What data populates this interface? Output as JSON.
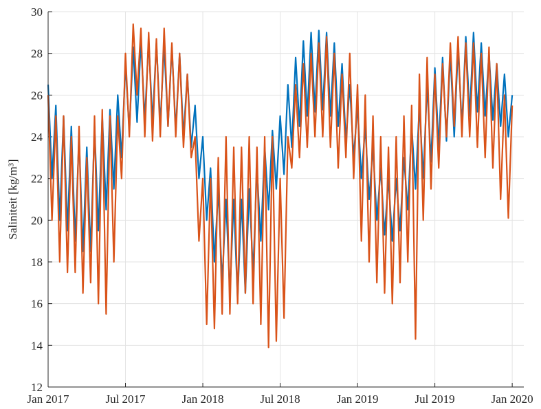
{
  "chart_data": {
    "type": "line",
    "ylabel": "Saliniteit [kg/m³]",
    "xlim": [
      2017,
      2020.075
    ],
    "ylim": [
      12,
      30
    ],
    "xticks": [
      {
        "value": 2017,
        "label": "Jan 2017"
      },
      {
        "value": 2017.5,
        "label": "Jul 2017"
      },
      {
        "value": 2018,
        "label": "Jan 2018"
      },
      {
        "value": 2018.5,
        "label": "Jul 2018"
      },
      {
        "value": 2019,
        "label": "Jan 2019"
      },
      {
        "value": 2019.5,
        "label": "Jul 2019"
      },
      {
        "value": 2020,
        "label": "Jan 2020"
      }
    ],
    "yticks": [
      12,
      14,
      16,
      18,
      20,
      22,
      24,
      26,
      28,
      30
    ],
    "grid": true,
    "x": [
      2017.0,
      2017.025,
      2017.05,
      2017.075,
      2017.1,
      2017.125,
      2017.15,
      2017.175,
      2017.2,
      2017.225,
      2017.25,
      2017.275,
      2017.3,
      2017.325,
      2017.35,
      2017.375,
      2017.4,
      2017.425,
      2017.45,
      2017.475,
      2017.5,
      2017.525,
      2017.55,
      2017.575,
      2017.6,
      2017.625,
      2017.65,
      2017.675,
      2017.7,
      2017.725,
      2017.75,
      2017.775,
      2017.8,
      2017.825,
      2017.85,
      2017.875,
      2017.9,
      2017.925,
      2017.95,
      2017.975,
      2018.0,
      2018.025,
      2018.05,
      2018.075,
      2018.1,
      2018.125,
      2018.15,
      2018.175,
      2018.2,
      2018.225,
      2018.25,
      2018.275,
      2018.3,
      2018.325,
      2018.35,
      2018.375,
      2018.4,
      2018.425,
      2018.45,
      2018.475,
      2018.5,
      2018.525,
      2018.55,
      2018.575,
      2018.6,
      2018.625,
      2018.65,
      2018.675,
      2018.7,
      2018.725,
      2018.75,
      2018.775,
      2018.8,
      2018.825,
      2018.85,
      2018.875,
      2018.9,
      2018.925,
      2018.95,
      2018.975,
      2019.0,
      2019.025,
      2019.05,
      2019.075,
      2019.1,
      2019.125,
      2019.15,
      2019.175,
      2019.2,
      2019.225,
      2019.25,
      2019.275,
      2019.3,
      2019.325,
      2019.35,
      2019.375,
      2019.4,
      2019.425,
      2019.45,
      2019.475,
      2019.5,
      2019.525,
      2019.55,
      2019.575,
      2019.6,
      2019.625,
      2019.65,
      2019.675,
      2019.7,
      2019.725,
      2019.75,
      2019.775,
      2019.8,
      2019.825,
      2019.85,
      2019.875,
      2019.9,
      2019.925,
      2019.95,
      2019.975,
      2020.0
    ],
    "series": [
      {
        "color": "#0072bd",
        "values": [
          26.5,
          22,
          25.5,
          20,
          25,
          19.5,
          24.5,
          19,
          24,
          18.5,
          23.5,
          18.5,
          24.5,
          19.5,
          25,
          20.5,
          25.3,
          21.5,
          26,
          23,
          27.5,
          24.3,
          28.3,
          24.7,
          28.6,
          24.8,
          28.6,
          24.7,
          28.5,
          24.6,
          28.4,
          24.5,
          28.3,
          24.3,
          28,
          24,
          27,
          23.5,
          25.5,
          22,
          24,
          20,
          22.5,
          18,
          21.5,
          17,
          21,
          16.5,
          21,
          16.2,
          21,
          16.5,
          21.5,
          17.5,
          22.5,
          19,
          23.5,
          20.5,
          24.3,
          21.5,
          25,
          22.2,
          26.5,
          23.5,
          27.8,
          24.5,
          28.6,
          25,
          29,
          25.2,
          29.1,
          25.3,
          29,
          25,
          28.5,
          24.5,
          27.5,
          23.8,
          26.5,
          23,
          25.5,
          22,
          24.5,
          21,
          23.5,
          20,
          22.5,
          19.3,
          22,
          19,
          22,
          19.5,
          23,
          20.5,
          24.5,
          21.5,
          25.5,
          22,
          26.5,
          22.8,
          27.3,
          23.5,
          27.8,
          23.8,
          28,
          24,
          28.3,
          24.5,
          28.8,
          25,
          29,
          25.2,
          28.5,
          25,
          28,
          24.8,
          27.5,
          24.5,
          27,
          24,
          26
        ]
      },
      {
        "color": "#d95319",
        "values": [
          26,
          20,
          25,
          18,
          25,
          17.5,
          24,
          17.5,
          24.5,
          16.5,
          23,
          17,
          25,
          16,
          25.3,
          15.5,
          25,
          18,
          25,
          22,
          28,
          24,
          29.4,
          26,
          29.2,
          24,
          29,
          23.8,
          28.7,
          24,
          29.2,
          24.5,
          28.5,
          24,
          28,
          23.5,
          27,
          23,
          24,
          19,
          22,
          15,
          22,
          14.8,
          23,
          15.5,
          24,
          15.5,
          23.5,
          16,
          23.5,
          16.5,
          24,
          16,
          23.5,
          15,
          24,
          13.9,
          24,
          14.2,
          22,
          15.3,
          24,
          22.5,
          26.5,
          23,
          27.5,
          23.5,
          28,
          24,
          28.5,
          24,
          28.8,
          23.5,
          28,
          22.5,
          27,
          23,
          28,
          22,
          26.5,
          19,
          26,
          18,
          25,
          17,
          24,
          16.5,
          23.5,
          16,
          24,
          17,
          25,
          18,
          25.5,
          14.3,
          27,
          20,
          27.8,
          21.5,
          27,
          22.5,
          27.5,
          24,
          28.5,
          24.5,
          28.8,
          24,
          28.5,
          24,
          28.5,
          23.5,
          28,
          23,
          28.3,
          22.5,
          27.5,
          21,
          26,
          20.1,
          25.5
        ]
      }
    ]
  }
}
